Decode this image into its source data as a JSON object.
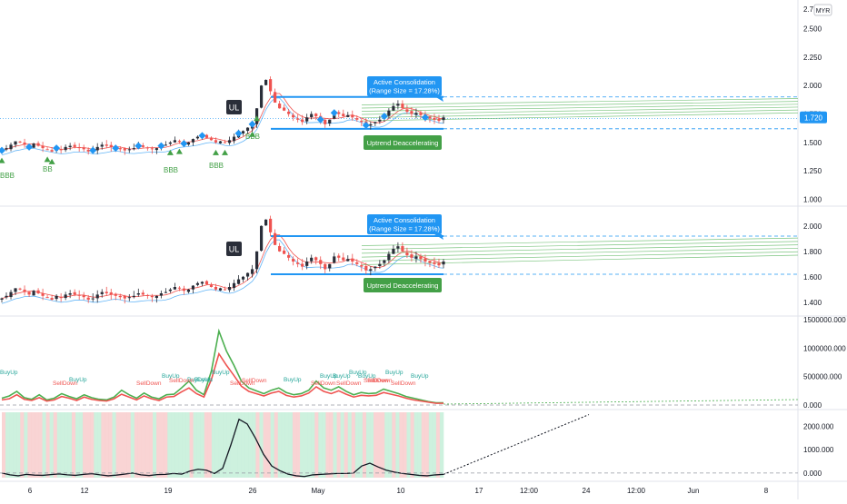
{
  "chart_data": [
    {
      "type": "candlestick",
      "pane": "price-main",
      "currency_badge": "MYR",
      "y_ticks": [
        "2.7",
        "2.500",
        "2.250",
        "2.000",
        "1.750",
        "1.500",
        "1.250",
        "1.000"
      ],
      "y_tick_values": [
        2.7,
        2.5,
        2.25,
        2.0,
        1.75,
        1.5,
        1.25,
        1.0
      ],
      "ylim": [
        0.98,
        2.72
      ],
      "last_price_label": "1.720",
      "last_price": 1.72,
      "close_series": [
        1.43,
        1.45,
        1.48,
        1.51,
        1.5,
        1.48,
        1.46,
        1.49,
        1.47,
        1.45,
        1.44,
        1.42,
        1.45,
        1.44,
        1.46,
        1.47,
        1.46,
        1.45,
        1.44,
        1.42,
        1.43,
        1.46,
        1.48,
        1.47,
        1.46,
        1.45,
        1.44,
        1.43,
        1.44,
        1.45,
        1.47,
        1.46,
        1.45,
        1.44,
        1.45,
        1.47,
        1.48,
        1.5,
        1.52,
        1.51,
        1.49,
        1.5,
        1.53,
        1.55,
        1.56,
        1.54,
        1.52,
        1.5,
        1.51,
        1.5,
        1.52,
        1.55,
        1.58,
        1.6,
        1.63,
        1.66,
        1.8,
        2.0,
        2.05,
        1.95,
        1.85,
        1.8,
        1.78,
        1.75,
        1.72,
        1.7,
        1.68,
        1.72,
        1.75,
        1.73,
        1.7,
        1.66,
        1.7,
        1.76,
        1.75,
        1.73,
        1.74,
        1.72,
        1.7,
        1.68,
        1.65,
        1.66,
        1.68,
        1.7,
        1.73,
        1.78,
        1.82,
        1.84,
        1.8,
        1.77,
        1.75,
        1.76,
        1.74,
        1.72,
        1.71,
        1.7,
        1.69,
        1.72
      ],
      "labels": {
        "ul": "UL",
        "active_title": "Active Consolidation",
        "active_sub": "(Range Size = 17.28%)",
        "trend": "Uptrend Deaccelerating",
        "bbb1": "BBB",
        "bb2": "BB",
        "bbb3": "BBB",
        "bbb4": "BBB"
      },
      "consolidation_range": [
        1.62,
        1.9
      ]
    },
    {
      "type": "candlestick",
      "pane": "price-secondary",
      "y_ticks": [
        "2.000",
        "1.800",
        "1.600",
        "1.400"
      ],
      "y_tick_values": [
        2.0,
        1.8,
        1.6,
        1.4
      ],
      "ylim": [
        1.32,
        2.12
      ],
      "labels": {
        "ul": "UL",
        "active_title": "Active Consolidation",
        "active_sub": "(Range Size = 17.28%)",
        "trend": "Uptrend Deaccelerating"
      },
      "consolidation_range": [
        1.62,
        1.92
      ]
    },
    {
      "type": "line",
      "pane": "volume-pressure",
      "y_ticks": [
        "1500000.000",
        "1000000.000",
        "500000.000",
        "0.000"
      ],
      "y_tick_values": [
        1500000,
        1000000,
        500000,
        0
      ],
      "ylim": [
        0,
        1500000
      ],
      "series": [
        {
          "name": "BuyUp",
          "color": "#4caf50",
          "values": [
            120000,
            160000,
            240000,
            130000,
            100000,
            180000,
            90000,
            120000,
            200000,
            150000,
            110000,
            180000,
            130000,
            100000,
            90000,
            140000,
            260000,
            180000,
            120000,
            210000,
            140000,
            110000,
            180000,
            190000,
            300000,
            420000,
            260000,
            180000,
            600000,
            1300000,
            950000,
            700000,
            420000,
            300000,
            250000,
            200000,
            260000,
            300000,
            220000,
            180000,
            200000,
            260000,
            420000,
            300000,
            260000,
            320000,
            240000,
            180000,
            220000,
            200000,
            210000,
            280000,
            240000,
            200000,
            150000,
            120000,
            90000,
            60000,
            40000,
            40000
          ]
        },
        {
          "name": "SellDown",
          "color": "#ef5350",
          "values": [
            90000,
            110000,
            180000,
            100000,
            80000,
            130000,
            70000,
            90000,
            150000,
            120000,
            80000,
            140000,
            100000,
            80000,
            70000,
            110000,
            190000,
            140000,
            90000,
            160000,
            110000,
            80000,
            140000,
            150000,
            230000,
            300000,
            200000,
            140000,
            450000,
            900000,
            700000,
            520000,
            330000,
            240000,
            200000,
            160000,
            210000,
            240000,
            170000,
            140000,
            160000,
            210000,
            320000,
            240000,
            200000,
            250000,
            190000,
            140000,
            170000,
            160000,
            170000,
            220000,
            190000,
            160000,
            120000,
            90000,
            70000,
            50000,
            30000,
            30000
          ]
        }
      ],
      "text_labels": [
        "BuyUp",
        "SellDown",
        "BuyUp",
        "SellDown",
        "BuyUp",
        "BuyDown",
        "BuyUp",
        "SellDown",
        "BuyUp",
        "SellDown",
        "BuyUp",
        "SellDown",
        "BuyUp",
        "BuyUp",
        "SellDown",
        "BuyUp",
        "SellDown",
        "BuyUp",
        "SellDown",
        "BuyUp",
        "SellDown",
        "SellDown",
        "BuyUp"
      ]
    },
    {
      "type": "line",
      "pane": "oscillator",
      "y_ticks": [
        "2000.000",
        "1000.000",
        "0.000"
      ],
      "y_tick_values": [
        2000,
        1000,
        0
      ],
      "ylim": [
        -200,
        2600
      ],
      "series": [
        {
          "values": [
            0,
            -80,
            -120,
            -60,
            -90,
            -100,
            -70,
            -40,
            -80,
            -100,
            -60,
            -30,
            -80,
            -120,
            -90,
            -50,
            0,
            -80,
            -110,
            -70,
            -60,
            -20,
            -50,
            80,
            160,
            120,
            -20,
            200,
            1200,
            2300,
            2100,
            1500,
            800,
            300,
            100,
            -50,
            -120,
            -150,
            -80,
            -60,
            -40,
            -20,
            -20,
            0,
            300,
            420,
            260,
            120,
            40,
            -20,
            -60,
            -100,
            -120,
            -80,
            -60
          ]
        }
      ],
      "projection_end": 2500
    }
  ],
  "x_axis": {
    "ticks": [
      "6",
      "12",
      "19",
      "26",
      "May",
      "10",
      "17",
      "12:00",
      "24",
      "12:00",
      "Jun",
      "8"
    ]
  }
}
